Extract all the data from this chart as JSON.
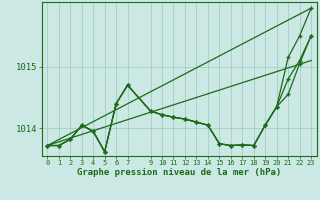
{
  "title": "Graphe pression niveau de la mer (hPa)",
  "bg_color": "#cce8e4",
  "grid_color": "#9dc8c2",
  "line_color": "#1a6b1a",
  "ylim": [
    1013.55,
    1016.05
  ],
  "xlim": [
    -0.5,
    23.5
  ],
  "yticks": [
    1014,
    1015
  ],
  "xticks": [
    0,
    1,
    2,
    3,
    4,
    5,
    6,
    7,
    9,
    10,
    11,
    12,
    13,
    14,
    15,
    16,
    17,
    18,
    19,
    20,
    21,
    22,
    23
  ],
  "trend1_x": [
    0,
    23
  ],
  "trend1_y": [
    1013.72,
    1015.95
  ],
  "trend2_x": [
    0,
    23
  ],
  "trend2_y": [
    1013.72,
    1015.1
  ],
  "s1_x": [
    0,
    1,
    2,
    3,
    4,
    5,
    6,
    7,
    9,
    10,
    11,
    12,
    13,
    14,
    15,
    16,
    17,
    18,
    19,
    20,
    21,
    22,
    23
  ],
  "s1_y": [
    1013.72,
    1013.72,
    1013.82,
    1014.05,
    1013.95,
    1013.62,
    1014.4,
    1014.7,
    1014.28,
    1014.22,
    1014.18,
    1014.15,
    1014.1,
    1014.05,
    1013.75,
    1013.72,
    1013.73,
    1013.72,
    1014.05,
    1014.35,
    1015.15,
    1015.5,
    1015.95
  ],
  "s2_x": [
    0,
    1,
    2,
    3,
    4,
    5,
    6,
    7,
    9,
    10,
    11,
    12,
    13,
    14,
    15,
    16,
    17,
    18,
    19,
    20,
    21,
    22,
    23
  ],
  "s2_y": [
    1013.72,
    1013.72,
    1013.82,
    1014.05,
    1013.95,
    1013.62,
    1014.4,
    1014.7,
    1014.28,
    1014.22,
    1014.18,
    1014.15,
    1014.1,
    1014.05,
    1013.75,
    1013.72,
    1013.73,
    1013.72,
    1014.05,
    1014.35,
    1014.8,
    1015.1,
    1015.5
  ],
  "s3_x": [
    0,
    1,
    2,
    3,
    4,
    5,
    6,
    7,
    9,
    10,
    11,
    12,
    13,
    14,
    15,
    16,
    17,
    18,
    19,
    20,
    21,
    22,
    23
  ],
  "s3_y": [
    1013.72,
    1013.72,
    1013.82,
    1014.05,
    1013.95,
    1013.62,
    1014.4,
    1014.7,
    1014.28,
    1014.22,
    1014.18,
    1014.15,
    1014.1,
    1014.05,
    1013.75,
    1013.72,
    1013.73,
    1013.72,
    1014.05,
    1014.35,
    1014.55,
    1015.05,
    1015.5
  ]
}
